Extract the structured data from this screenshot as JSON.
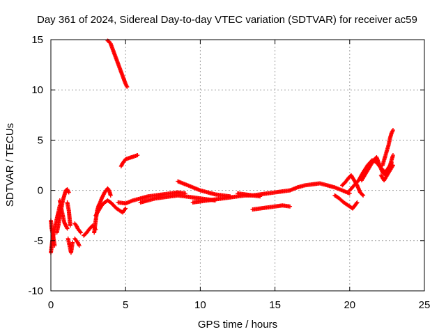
{
  "chart_data": {
    "type": "scatter",
    "title": "Day 361 of 2024, Sidereal Day-to-day VTEC variation (SDTVAR) for receiver ac59",
    "xlabel": "GPS time / hours",
    "ylabel": "SDTVAR / TECUs",
    "xlim": [
      0,
      25
    ],
    "ylim": [
      -10,
      15
    ],
    "xticks": [
      0,
      5,
      10,
      15,
      20,
      25
    ],
    "yticks": [
      -10,
      -5,
      0,
      5,
      10,
      15
    ],
    "grid": true,
    "marker": "plus",
    "color": "#ff0000",
    "series": [
      {
        "name": "SDTVAR",
        "segments": [
          {
            "x": [
              0.0,
              0.1,
              0.2,
              0.3,
              0.4,
              0.5,
              0.6
            ],
            "y": [
              -6.2,
              -5.0,
              -4.2,
              -3.5,
              -2.8,
              -2.2,
              -1.5
            ]
          },
          {
            "x": [
              0.0,
              0.05,
              0.15,
              0.25
            ],
            "y": [
              -3.0,
              -3.8,
              -4.5,
              -5.5
            ]
          },
          {
            "x": [
              0.4,
              0.5,
              0.6,
              0.7,
              0.8,
              0.9,
              1.0,
              1.1,
              1.2
            ],
            "y": [
              -4.2,
              -3.5,
              -2.6,
              -1.8,
              -1.0,
              -0.5,
              0.0,
              0.1,
              -0.2
            ]
          },
          {
            "x": [
              0.6,
              0.7,
              0.8,
              0.9,
              1.0,
              1.1
            ],
            "y": [
              -1.0,
              -1.8,
              -2.5,
              -3.2,
              -3.5,
              -3.8
            ]
          },
          {
            "x": [
              1.1,
              1.2,
              1.3
            ],
            "y": [
              -1.2,
              -2.0,
              -3.5
            ]
          },
          {
            "x": [
              1.15,
              1.25,
              1.35,
              1.45
            ],
            "y": [
              -4.8,
              -5.5,
              -6.2,
              -5.2
            ]
          },
          {
            "x": [
              1.6,
              1.7,
              1.8,
              1.9
            ],
            "y": [
              -4.8,
              -5.0,
              -5.2,
              -5.5
            ]
          },
          {
            "x": [
              1.6,
              1.7,
              1.8,
              1.9,
              2.0
            ],
            "y": [
              -3.3,
              -3.5,
              -3.8,
              -4.0,
              -4.2
            ]
          },
          {
            "x": [
              2.2,
              2.4,
              2.6,
              2.8,
              3.0
            ],
            "y": [
              -4.5,
              -4.2,
              -3.8,
              -3.5,
              -3.9
            ]
          },
          {
            "x": [
              2.9,
              3.0,
              3.1,
              3.2,
              3.3,
              3.4,
              3.5,
              3.6,
              3.7,
              3.8,
              3.9,
              4.0
            ],
            "y": [
              -4.2,
              -3.0,
              -2.0,
              -1.5,
              -1.2,
              -0.8,
              -0.5,
              -0.2,
              0.0,
              0.2,
              0.0,
              -0.5
            ]
          },
          {
            "x": [
              3.0,
              3.2,
              3.4,
              3.6,
              3.8,
              4.0,
              4.2,
              4.4,
              4.6,
              4.8,
              5.0
            ],
            "y": [
              -2.5,
              -2.0,
              -1.5,
              -1.2,
              -1.0,
              -1.2,
              -1.5,
              -1.8,
              -2.0,
              -2.2,
              -1.8
            ]
          },
          {
            "x": [
              3.8,
              3.9,
              4.0,
              4.1,
              4.2,
              4.3,
              4.4,
              4.5,
              4.6,
              4.7,
              4.8,
              4.9,
              5.0,
              5.1
            ],
            "y": [
              14.9,
              14.8,
              14.6,
              14.2,
              13.8,
              13.4,
              13.0,
              12.6,
              12.2,
              11.8,
              11.4,
              11.0,
              10.6,
              10.3
            ]
          },
          {
            "x": [
              4.7,
              4.8,
              4.9,
              5.0,
              5.2,
              5.4,
              5.6,
              5.8
            ],
            "y": [
              2.4,
              2.7,
              2.9,
              3.1,
              3.2,
              3.3,
              3.4,
              3.5
            ]
          },
          {
            "x": [
              4.5,
              5.0,
              5.5,
              6.0,
              6.5,
              7.0,
              7.5,
              8.0,
              8.5,
              9.0
            ],
            "y": [
              -1.2,
              -1.3,
              -1.0,
              -0.8,
              -0.6,
              -0.5,
              -0.4,
              -0.3,
              -0.2,
              -0.3
            ]
          },
          {
            "x": [
              6.0,
              6.5,
              7.0,
              7.5,
              8.0,
              8.5,
              9.0,
              9.5,
              10.0,
              10.5,
              11.0
            ],
            "y": [
              -1.2,
              -1.0,
              -0.8,
              -0.7,
              -0.6,
              -0.5,
              -0.6,
              -0.7,
              -0.8,
              -0.9,
              -1.0
            ]
          },
          {
            "x": [
              8.5,
              9.0,
              9.5,
              10.0,
              10.5,
              11.0,
              11.5,
              12.0
            ],
            "y": [
              0.9,
              0.6,
              0.3,
              0.0,
              -0.2,
              -0.4,
              -0.5,
              -0.6
            ]
          },
          {
            "x": [
              9.5,
              10.0,
              10.5,
              11.0,
              11.5,
              12.0,
              12.5,
              13.0,
              13.5,
              14.0
            ],
            "y": [
              -1.2,
              -1.1,
              -1.0,
              -0.9,
              -0.8,
              -0.7,
              -0.6,
              -0.5,
              -0.5,
              -0.6
            ]
          },
          {
            "x": [
              12.5,
              13.0,
              13.5,
              14.0,
              14.5,
              15.0,
              15.5,
              16.0
            ],
            "y": [
              -0.3,
              -0.4,
              -0.5,
              -0.4,
              -0.3,
              -0.2,
              -0.1,
              0.0
            ]
          },
          {
            "x": [
              13.5,
              14.0,
              14.5,
              15.0,
              15.5,
              16.0
            ],
            "y": [
              -1.9,
              -1.8,
              -1.7,
              -1.6,
              -1.5,
              -1.6
            ]
          },
          {
            "x": [
              16.0,
              16.5,
              17.0,
              17.5,
              18.0,
              18.5,
              19.0,
              19.5,
              20.0
            ],
            "y": [
              0.0,
              0.3,
              0.5,
              0.6,
              0.7,
              0.5,
              0.3,
              0.0,
              -0.3
            ]
          },
          {
            "x": [
              19.0,
              19.3,
              19.6,
              19.9,
              20.2,
              20.5
            ],
            "y": [
              -0.5,
              -0.8,
              -1.2,
              -1.5,
              -1.8,
              -1.2
            ]
          },
          {
            "x": [
              19.5,
              19.7,
              19.9,
              20.1,
              20.3,
              20.5,
              20.7,
              20.9
            ],
            "y": [
              0.5,
              0.8,
              1.2,
              1.5,
              1.0,
              0.5,
              -0.2,
              -0.5
            ]
          },
          {
            "x": [
              20.0,
              20.3,
              20.6,
              20.9,
              21.2,
              21.5,
              21.8,
              22.1,
              22.4,
              22.7,
              22.9
            ],
            "y": [
              0.0,
              0.5,
              1.0,
              1.8,
              2.5,
              3.0,
              2.8,
              2.2,
              1.8,
              2.5,
              3.5
            ]
          },
          {
            "x": [
              20.8,
              21.0,
              21.2,
              21.4,
              21.6,
              21.8,
              22.0,
              22.2,
              22.4,
              22.6,
              22.8
            ],
            "y": [
              1.0,
              1.5,
              2.0,
              2.5,
              3.0,
              3.3,
              2.5,
              1.8,
              1.5,
              2.0,
              2.8
            ]
          },
          {
            "x": [
              22.2,
              22.4,
              22.6,
              22.7,
              22.8,
              22.9
            ],
            "y": [
              2.5,
              3.5,
              4.5,
              5.2,
              5.7,
              6.0
            ]
          },
          {
            "x": [
              22.1,
              22.3,
              22.5,
              22.7,
              22.9
            ],
            "y": [
              1.5,
              1.0,
              1.5,
              2.0,
              2.5
            ]
          }
        ]
      }
    ]
  }
}
